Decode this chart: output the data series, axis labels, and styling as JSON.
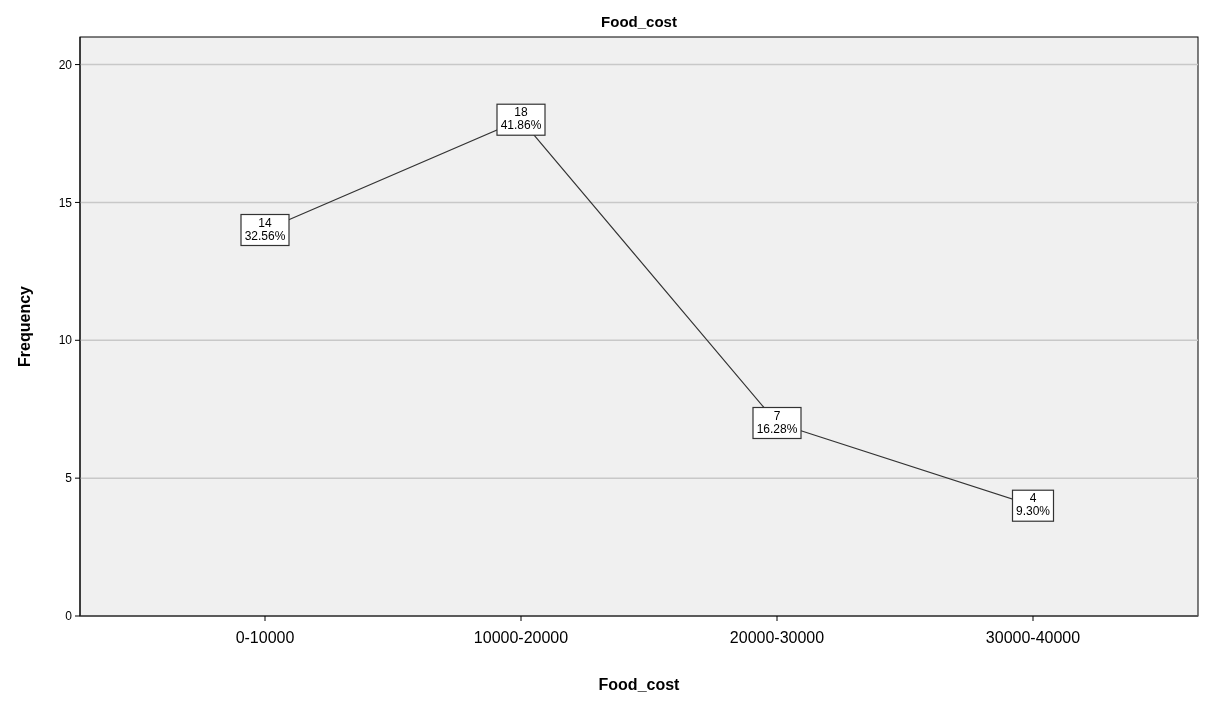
{
  "chart_data": {
    "type": "line",
    "title": "Food_cost",
    "xlabel": "Food_cost",
    "ylabel": "Frequency",
    "categories": [
      "0-10000",
      "10000-20000",
      "20000-30000",
      "30000-40000"
    ],
    "series": [
      {
        "color": "#333333",
        "values": [
          14,
          18,
          7,
          4
        ],
        "value_labels": [
          "14\n32.56%",
          "18\n41.86%",
          "7\n16.28%",
          "4\n9.30%"
        ]
      }
    ],
    "ylim": [
      0,
      21
    ],
    "yticks": [
      0,
      5,
      10,
      15,
      20
    ],
    "grid": "y",
    "line_style": "solid"
  }
}
